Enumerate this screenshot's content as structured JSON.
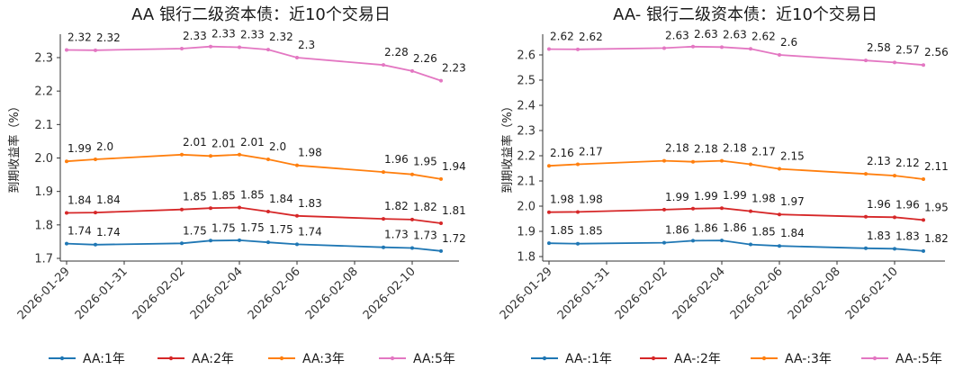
{
  "chart_data": [
    {
      "type": "line",
      "title": "AA 银行二级资本债：近10个交易日",
      "xlabel": "",
      "ylabel": "到期收益率（%）",
      "ylim": [
        1.7,
        2.36
      ],
      "yticks": [
        "1.7",
        "1.8",
        "1.9",
        "2.0",
        "2.1",
        "2.2",
        "2.3"
      ],
      "xticks": [
        "2026-01-29",
        "2026-01-31",
        "2026-02-02",
        "2026-02-04",
        "2026-02-06",
        "2026-02-08",
        "2026-02-10"
      ],
      "x": [
        "2026-01-29",
        "2026-01-30",
        "2026-02-02",
        "2026-02-03",
        "2026-02-04",
        "2026-02-05",
        "2026-02-06",
        "2026-02-09",
        "2026-02-10",
        "2026-02-11"
      ],
      "series": [
        {
          "name": "AA:1年",
          "color": "#1f77b4",
          "values": [
            1.744,
            1.741,
            1.745,
            1.753,
            1.754,
            1.748,
            1.742,
            1.733,
            1.731,
            1.722
          ],
          "labels": [
            "1.74",
            "1.74",
            "1.75",
            "1.75",
            "1.75",
            "1.75",
            "1.74",
            "1.73",
            "1.73",
            "1.72"
          ]
        },
        {
          "name": "AA:2年",
          "color": "#d62728",
          "values": [
            1.836,
            1.837,
            1.846,
            1.85,
            1.852,
            1.84,
            1.827,
            1.818,
            1.816,
            1.805
          ],
          "labels": [
            "1.84",
            "1.84",
            "1.85",
            "1.85",
            "1.85",
            "1.84",
            "1.83",
            "1.82",
            "1.82",
            "1.81"
          ]
        },
        {
          "name": "AA:3年",
          "color": "#ff7f0e",
          "values": [
            1.99,
            1.996,
            2.01,
            2.006,
            2.01,
            1.996,
            1.978,
            1.958,
            1.951,
            1.937
          ],
          "labels": [
            "1.99",
            "2.0",
            "2.01",
            "2.01",
            "2.01",
            "2.0",
            "1.98",
            "1.96",
            "1.95",
            "1.94"
          ]
        },
        {
          "name": "AA:5年",
          "color": "#e377c2",
          "values": [
            2.323,
            2.322,
            2.327,
            2.333,
            2.331,
            2.324,
            2.3,
            2.278,
            2.26,
            2.231
          ],
          "labels": [
            "2.32",
            "2.32",
            "2.33",
            "2.33",
            "2.33",
            "2.32",
            "2.3",
            "2.28",
            "2.26",
            "2.23"
          ]
        }
      ]
    },
    {
      "type": "line",
      "title": "AA- 银行二级资本债：近10个交易日",
      "xlabel": "",
      "ylabel": "到期收益率（%）",
      "ylim": [
        1.78,
        2.67
      ],
      "yticks": [
        "1.8",
        "1.9",
        "2.0",
        "2.1",
        "2.2",
        "2.3",
        "2.4",
        "2.5",
        "2.6"
      ],
      "xticks": [
        "2026-01-29",
        "2026-01-31",
        "2026-02-02",
        "2026-02-04",
        "2026-02-06",
        "2026-02-08",
        "2026-02-10"
      ],
      "x": [
        "2026-01-29",
        "2026-01-30",
        "2026-02-02",
        "2026-02-03",
        "2026-02-04",
        "2026-02-05",
        "2026-02-06",
        "2026-02-09",
        "2026-02-10",
        "2026-02-11"
      ],
      "series": [
        {
          "name": "AA-:1年",
          "color": "#1f77b4",
          "values": [
            1.853,
            1.851,
            1.855,
            1.863,
            1.864,
            1.848,
            1.842,
            1.833,
            1.831,
            1.822
          ],
          "labels": [
            "1.85",
            "1.85",
            "1.86",
            "1.86",
            "1.86",
            "1.85",
            "1.84",
            "1.83",
            "1.83",
            "1.82"
          ]
        },
        {
          "name": "AA-:2年",
          "color": "#d62728",
          "values": [
            1.976,
            1.977,
            1.986,
            1.99,
            1.992,
            1.98,
            1.967,
            1.958,
            1.956,
            1.945
          ],
          "labels": [
            "1.98",
            "1.98",
            "1.99",
            "1.99",
            "1.99",
            "1.98",
            "1.97",
            "1.96",
            "1.96",
            "1.95"
          ]
        },
        {
          "name": "AA-:3年",
          "color": "#ff7f0e",
          "values": [
            2.16,
            2.166,
            2.18,
            2.176,
            2.18,
            2.166,
            2.148,
            2.128,
            2.121,
            2.107
          ],
          "labels": [
            "2.16",
            "2.17",
            "2.18",
            "2.18",
            "2.18",
            "2.17",
            "2.15",
            "2.13",
            "2.12",
            "2.11"
          ]
        },
        {
          "name": "AA-:5年",
          "color": "#e377c2",
          "values": [
            2.623,
            2.622,
            2.627,
            2.633,
            2.631,
            2.624,
            2.6,
            2.578,
            2.57,
            2.56
          ],
          "labels": [
            "2.62",
            "2.62",
            "2.63",
            "2.63",
            "2.63",
            "2.62",
            "2.6",
            "2.58",
            "2.57",
            "2.56"
          ]
        }
      ]
    }
  ]
}
